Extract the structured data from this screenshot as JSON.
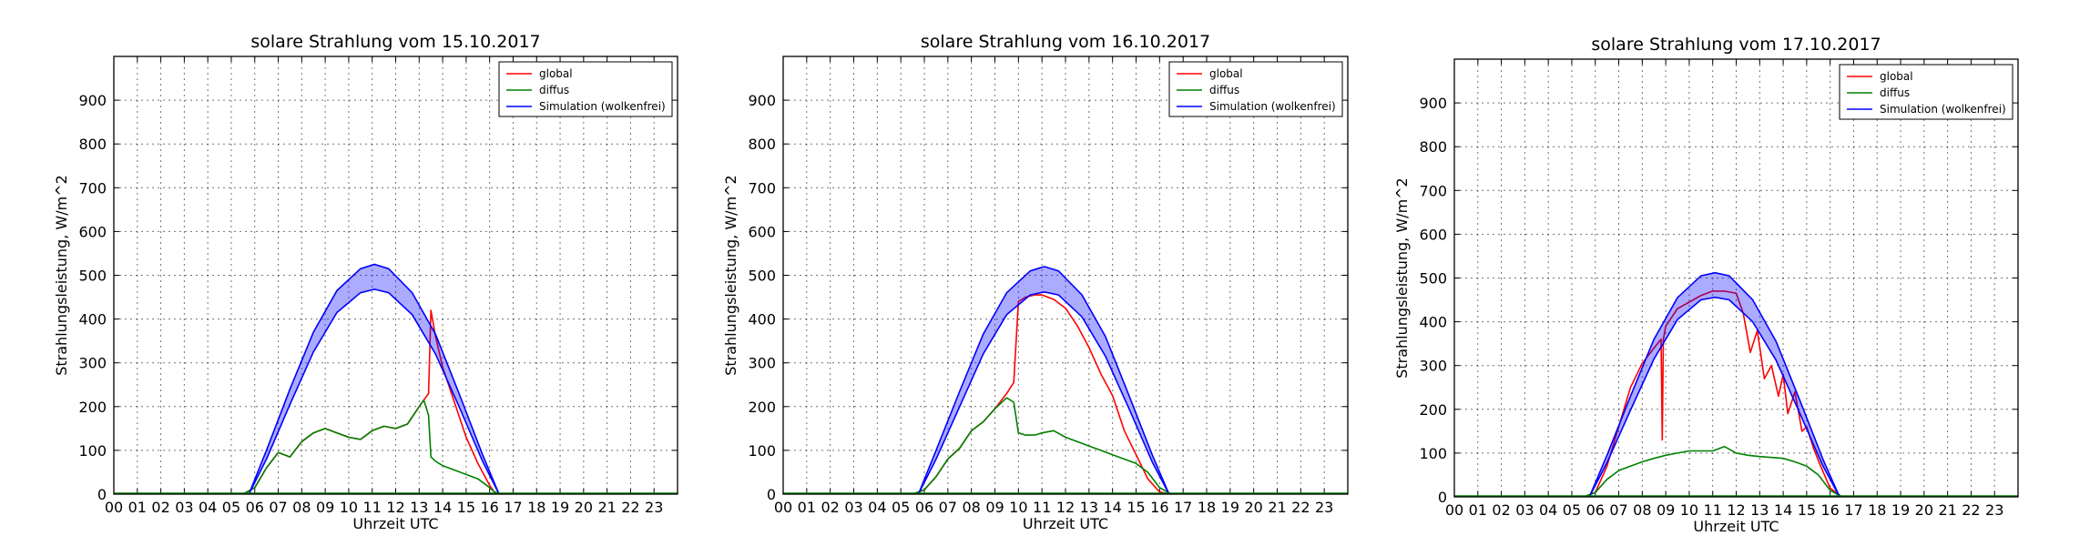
{
  "figure": {
    "background": "#ffffff"
  },
  "chart_data": [
    {
      "type": "line",
      "title": "solare Strahlung vom 15.10.2017",
      "xlabel": "Uhrzeit UTC",
      "ylabel": "Strahlungsleistung, W/m^2",
      "xlim": [
        0,
        24
      ],
      "ylim": [
        0,
        1000
      ],
      "x_ticks": [
        "00",
        "01",
        "02",
        "03",
        "04",
        "05",
        "06",
        "07",
        "08",
        "09",
        "10",
        "11",
        "12",
        "13",
        "14",
        "15",
        "16",
        "17",
        "18",
        "19",
        "20",
        "21",
        "22",
        "23"
      ],
      "y_ticks": [
        "0",
        "100",
        "200",
        "300",
        "400",
        "500",
        "600",
        "700",
        "800",
        "900"
      ],
      "grid": true,
      "legend_position": "top-right",
      "series": [
        {
          "name": "global",
          "color": "#ff0000",
          "x": [
            5.5,
            6.0,
            6.5,
            7.0,
            7.5,
            8.0,
            8.5,
            9.0,
            9.5,
            10.0,
            10.5,
            11.0,
            11.5,
            12.0,
            12.5,
            13.0,
            13.2,
            13.4,
            13.5,
            13.7,
            14.0,
            14.5,
            15.0,
            15.5,
            16.0,
            16.2,
            16.5
          ],
          "y": [
            0,
            15,
            60,
            95,
            85,
            120,
            140,
            150,
            140,
            130,
            125,
            145,
            155,
            150,
            160,
            200,
            215,
            230,
            420,
            360,
            290,
            210,
            130,
            70,
            20,
            5,
            0
          ]
        },
        {
          "name": "diffus",
          "color": "#008000",
          "x": [
            5.5,
            6.0,
            6.5,
            7.0,
            7.5,
            8.0,
            8.5,
            9.0,
            9.5,
            10.0,
            10.5,
            11.0,
            11.5,
            12.0,
            12.5,
            13.0,
            13.2,
            13.4,
            13.5,
            13.7,
            14.0,
            14.5,
            15.0,
            15.5,
            16.0,
            16.2,
            16.5
          ],
          "y": [
            0,
            15,
            60,
            95,
            85,
            120,
            140,
            150,
            140,
            130,
            125,
            145,
            155,
            150,
            160,
            200,
            215,
            180,
            85,
            75,
            65,
            55,
            45,
            35,
            15,
            5,
            0
          ]
        },
        {
          "name": "Simulation (wolkenfrei)",
          "color": "#0000ff",
          "x": [
            5.75,
            6.5,
            7.5,
            8.5,
            9.5,
            10.5,
            11.1,
            11.7,
            12.7,
            13.7,
            14.7,
            15.7,
            16.4
          ],
          "y_upper": [
            0,
            100,
            240,
            370,
            465,
            515,
            525,
            515,
            460,
            365,
            230,
            90,
            0
          ],
          "y_lower": [
            0,
            80,
            205,
            325,
            415,
            460,
            468,
            460,
            410,
            320,
            200,
            75,
            0
          ]
        }
      ]
    },
    {
      "type": "line",
      "title": "solare Strahlung vom 16.10.2017",
      "xlabel": "Uhrzeit UTC",
      "ylabel": "Strahlungsleistung, W/m^2",
      "xlim": [
        0,
        24
      ],
      "ylim": [
        0,
        1000
      ],
      "x_ticks": [
        "00",
        "01",
        "02",
        "03",
        "04",
        "05",
        "06",
        "07",
        "08",
        "09",
        "10",
        "11",
        "12",
        "13",
        "14",
        "15",
        "16",
        "17",
        "18",
        "19",
        "20",
        "21",
        "22",
        "23"
      ],
      "y_ticks": [
        "0",
        "100",
        "200",
        "300",
        "400",
        "500",
        "600",
        "700",
        "800",
        "900"
      ],
      "grid": true,
      "legend_position": "top-right",
      "series": [
        {
          "name": "global",
          "color": "#ff0000",
          "x": [
            5.5,
            6.0,
            6.5,
            7.0,
            7.5,
            8.0,
            8.5,
            9.0,
            9.5,
            9.8,
            10.0,
            10.3,
            10.7,
            11.0,
            11.5,
            12.0,
            12.5,
            13.0,
            13.5,
            14.0,
            14.5,
            15.0,
            15.5,
            16.0,
            16.5
          ],
          "y": [
            0,
            10,
            40,
            80,
            105,
            145,
            165,
            195,
            230,
            255,
            440,
            450,
            455,
            455,
            445,
            425,
            385,
            335,
            275,
            225,
            145,
            90,
            35,
            5,
            0
          ]
        },
        {
          "name": "diffus",
          "color": "#008000",
          "x": [
            5.5,
            6.0,
            6.5,
            7.0,
            7.5,
            8.0,
            8.5,
            9.0,
            9.5,
            9.8,
            10.0,
            10.3,
            10.7,
            11.0,
            11.5,
            12.0,
            12.5,
            13.0,
            13.5,
            14.0,
            14.5,
            15.0,
            15.5,
            16.0,
            16.5
          ],
          "y": [
            0,
            10,
            40,
            80,
            105,
            145,
            165,
            195,
            220,
            210,
            140,
            135,
            135,
            140,
            145,
            130,
            120,
            110,
            100,
            90,
            80,
            70,
            50,
            15,
            0
          ]
        },
        {
          "name": "Simulation (wolkenfrei)",
          "color": "#0000ff",
          "x": [
            5.75,
            6.5,
            7.5,
            8.5,
            9.5,
            10.5,
            11.1,
            11.7,
            12.7,
            13.7,
            14.7,
            15.7,
            16.4
          ],
          "y_upper": [
            0,
            100,
            235,
            365,
            460,
            510,
            520,
            510,
            455,
            360,
            225,
            88,
            0
          ],
          "y_lower": [
            0,
            80,
            200,
            320,
            410,
            455,
            462,
            455,
            405,
            315,
            195,
            72,
            0
          ]
        }
      ]
    },
    {
      "type": "line",
      "title": "solare Strahlung vom 17.10.2017",
      "xlabel": "Uhrzeit UTC",
      "ylabel": "Strahlungsleistung, W/m^2",
      "xlim": [
        0,
        24
      ],
      "ylim": [
        0,
        1000
      ],
      "x_ticks": [
        "00",
        "01",
        "02",
        "03",
        "04",
        "05",
        "06",
        "07",
        "08",
        "09",
        "10",
        "11",
        "12",
        "13",
        "14",
        "15",
        "16",
        "17",
        "18",
        "19",
        "20",
        "21",
        "22",
        "23"
      ],
      "y_ticks": [
        "0",
        "100",
        "200",
        "300",
        "400",
        "500",
        "600",
        "700",
        "800",
        "900"
      ],
      "grid": true,
      "legend_position": "top-right",
      "series": [
        {
          "name": "global",
          "color": "#ff0000",
          "x": [
            5.5,
            6.0,
            6.5,
            7.0,
            7.5,
            8.0,
            8.5,
            8.8,
            8.85,
            8.9,
            9.0,
            9.5,
            10.0,
            10.5,
            11.0,
            11.5,
            12.0,
            12.3,
            12.6,
            12.9,
            13.2,
            13.5,
            13.8,
            14.0,
            14.2,
            14.5,
            14.8,
            15.0,
            15.3,
            15.6,
            16.0,
            16.5
          ],
          "y": [
            0,
            10,
            70,
            160,
            250,
            305,
            340,
            360,
            130,
            360,
            390,
            430,
            445,
            460,
            470,
            470,
            465,
            420,
            330,
            380,
            270,
            300,
            230,
            280,
            190,
            240,
            150,
            160,
            110,
            70,
            20,
            0
          ]
        },
        {
          "name": "diffus",
          "color": "#008000",
          "x": [
            5.5,
            6.0,
            6.5,
            7.0,
            7.5,
            8.0,
            8.5,
            9.0,
            9.5,
            10.0,
            10.5,
            11.0,
            11.5,
            12.0,
            12.5,
            13.0,
            13.5,
            14.0,
            14.5,
            15.0,
            15.5,
            16.0,
            16.5
          ],
          "y": [
            0,
            10,
            40,
            60,
            70,
            80,
            88,
            95,
            100,
            105,
            105,
            105,
            115,
            100,
            95,
            92,
            90,
            88,
            80,
            70,
            50,
            15,
            0
          ]
        },
        {
          "name": "Simulation (wolkenfrei)",
          "color": "#0000ff",
          "x": [
            5.75,
            6.5,
            7.5,
            8.5,
            9.5,
            10.5,
            11.1,
            11.7,
            12.7,
            13.7,
            14.7,
            15.7,
            16.4
          ],
          "y_upper": [
            0,
            95,
            230,
            360,
            455,
            505,
            512,
            505,
            450,
            355,
            222,
            85,
            0
          ],
          "y_lower": [
            0,
            78,
            198,
            315,
            405,
            450,
            456,
            450,
            400,
            312,
            192,
            70,
            0
          ]
        }
      ]
    }
  ]
}
